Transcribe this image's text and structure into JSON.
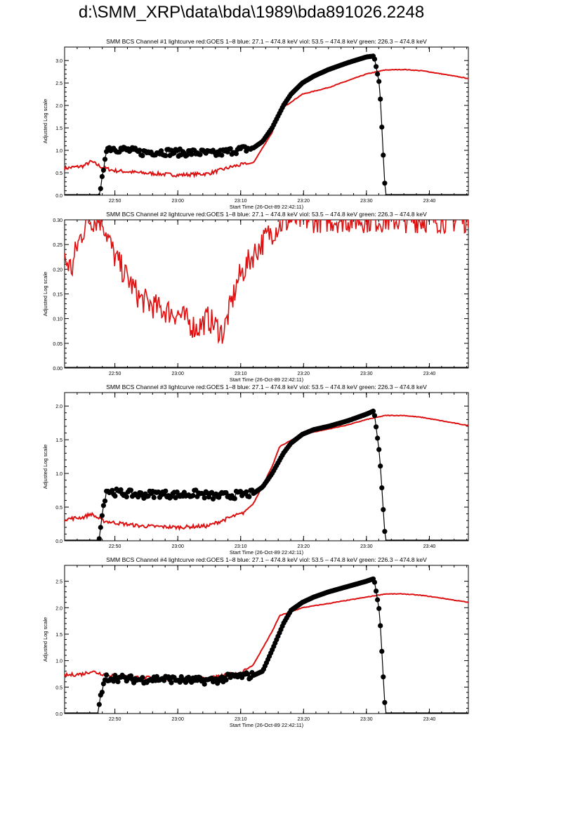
{
  "page": {
    "title": "d:\\SMM_XRP\\data\\bda\\1989\\bda891026.2248"
  },
  "colors": {
    "goes": "#dd1111",
    "bcs": "#000000",
    "axis": "#000000"
  },
  "chart_data": [
    {
      "type": "line",
      "title": "SMM BCS Channel #1 lightcurve  red:GOES 1–8  blue: 27.1 – 474.8 keV  viol: 53.5 – 474.8 keV  green: 226.3 – 474.8 keV",
      "xlabel": "Start Time (26-Oct-89 22:42:11)",
      "ylabel": "Adjusted Log scale",
      "xlim": [
        22.7,
        23.77
      ],
      "ylim": [
        0,
        3.3
      ],
      "xticks": [
        22.8333,
        23.0,
        23.1667,
        23.3333,
        23.5,
        23.6667
      ],
      "xticklabels": [
        "22:50",
        "23:00",
        "23:10",
        "23:20",
        "23:30",
        "23:40"
      ],
      "yticks": [
        0.0,
        0.5,
        1.0,
        1.5,
        2.0,
        2.5,
        3.0
      ],
      "yticklabels": [
        "0.0",
        "0.5",
        "1.0",
        "1.5",
        "2.0",
        "2.5",
        "3.0"
      ],
      "series": [
        {
          "role": "goes",
          "style": "line",
          "x": [
            22.7,
            22.75,
            22.77,
            22.8,
            22.83,
            22.9,
            23.0,
            23.08,
            23.15,
            23.17,
            23.2,
            23.25,
            23.27,
            23.33,
            23.4,
            23.45,
            23.5,
            23.55,
            23.6,
            23.65,
            23.7,
            23.77
          ],
          "y": [
            0.6,
            0.65,
            0.75,
            0.62,
            0.55,
            0.5,
            0.45,
            0.48,
            0.65,
            0.68,
            0.72,
            1.4,
            1.9,
            2.25,
            2.4,
            2.55,
            2.7,
            2.79,
            2.8,
            2.77,
            2.7,
            2.6
          ]
        },
        {
          "role": "bcs",
          "style": "markers",
          "x": [
            22.7,
            22.79,
            22.795,
            22.81,
            22.83,
            22.87,
            22.9,
            22.95,
            23.0,
            23.05,
            23.1,
            23.15,
            23.2,
            23.225,
            23.25,
            23.28,
            23.3,
            23.33,
            23.36,
            23.4,
            23.45,
            23.5,
            23.52,
            23.535,
            23.55,
            23.77
          ],
          "y": [
            0.0,
            0.0,
            0.05,
            1.05,
            1.05,
            1.0,
            0.95,
            0.97,
            0.95,
            0.95,
            0.92,
            1.0,
            1.05,
            1.2,
            1.5,
            2.0,
            2.25,
            2.5,
            2.65,
            2.8,
            2.95,
            3.08,
            3.1,
            2.45,
            0.0,
            0.0
          ]
        }
      ]
    },
    {
      "type": "line",
      "title": "SMM BCS Channel #2 lightcurve  red:GOES 1–8  blue: 27.1 – 474.8 keV  viol: 53.5 – 474.8 keV  green: 226.3 – 474.8 keV",
      "xlabel": "Start Time (26-Oct-89 22:42:11)",
      "ylabel": "Adjusted Log scale",
      "xlim": [
        22.7,
        23.77
      ],
      "ylim": [
        0,
        0.3
      ],
      "xticks": [
        22.8333,
        23.0,
        23.1667,
        23.3333,
        23.5,
        23.6667
      ],
      "xticklabels": [
        "22:50",
        "23:00",
        "23:10",
        "23:20",
        "23:30",
        "23:40"
      ],
      "yticks": [
        0.0,
        0.05,
        0.1,
        0.15,
        0.2,
        0.25,
        0.3
      ],
      "yticklabels": [
        "0.00",
        "0.05",
        "0.10",
        "0.15",
        "0.20",
        "0.25",
        "0.30"
      ],
      "series": [
        {
          "role": "goes",
          "style": "line",
          "x": [
            22.7,
            22.72,
            22.73,
            22.76,
            22.78,
            22.8,
            22.83,
            22.86,
            22.9,
            22.95,
            23.0,
            23.05,
            23.08,
            23.12,
            23.16,
            23.2,
            23.22,
            23.24,
            23.27,
            23.3
          ],
          "y": [
            0.22,
            0.2,
            0.24,
            0.3,
            0.3,
            0.3,
            0.23,
            0.19,
            0.14,
            0.12,
            0.11,
            0.08,
            0.1,
            0.07,
            0.18,
            0.23,
            0.25,
            0.27,
            0.29,
            0.3
          ]
        },
        {
          "role": "bcs",
          "style": "markers",
          "x": [
            22.7,
            23.77
          ],
          "y": [
            0.0,
            0.0
          ]
        }
      ]
    },
    {
      "type": "line",
      "title": "SMM BCS Channel #3 lightcurve  red:GOES 1–8  blue: 27.1 – 474.8 keV  viol: 53.5 – 474.8 keV  green: 226.3 – 474.8 keV",
      "xlabel": "Start Time (26-Oct-89 22:42:11)",
      "ylabel": "Adjusted Log scale",
      "xlim": [
        22.7,
        23.77
      ],
      "ylim": [
        0,
        2.2
      ],
      "xticks": [
        22.8333,
        23.0,
        23.1667,
        23.3333,
        23.5,
        23.6667
      ],
      "xticklabels": [
        "22:50",
        "23:00",
        "23:10",
        "23:20",
        "23:30",
        "23:40"
      ],
      "yticks": [
        0.0,
        0.5,
        1.0,
        1.5,
        2.0
      ],
      "yticklabels": [
        "0.0",
        "0.5",
        "1.0",
        "1.5",
        "2.0"
      ],
      "series": [
        {
          "role": "goes",
          "style": "line",
          "x": [
            22.7,
            22.75,
            22.77,
            22.8,
            22.83,
            22.9,
            23.0,
            23.08,
            23.15,
            23.17,
            23.2,
            23.25,
            23.27,
            23.33,
            23.4,
            23.45,
            23.5,
            23.55,
            23.6,
            23.65,
            23.7,
            23.77
          ],
          "y": [
            0.32,
            0.35,
            0.4,
            0.3,
            0.27,
            0.22,
            0.2,
            0.22,
            0.37,
            0.4,
            0.55,
            1.1,
            1.4,
            1.58,
            1.66,
            1.72,
            1.8,
            1.86,
            1.86,
            1.83,
            1.78,
            1.71
          ]
        },
        {
          "role": "bcs",
          "style": "markers",
          "x": [
            22.7,
            22.79,
            22.795,
            22.81,
            22.83,
            22.87,
            22.9,
            22.95,
            23.0,
            23.05,
            23.1,
            23.15,
            23.2,
            23.225,
            23.25,
            23.28,
            23.3,
            23.33,
            23.36,
            23.4,
            23.45,
            23.5,
            23.52,
            23.535,
            23.55,
            23.77
          ],
          "y": [
            0.0,
            0.0,
            0.23,
            0.75,
            0.72,
            0.7,
            0.68,
            0.7,
            0.68,
            0.7,
            0.66,
            0.68,
            0.7,
            0.8,
            1.0,
            1.3,
            1.45,
            1.58,
            1.65,
            1.7,
            1.78,
            1.88,
            1.93,
            1.27,
            0.0,
            0.0
          ]
        }
      ]
    },
    {
      "type": "line",
      "title": "SMM BCS Channel #4 lightcurve  red:GOES 1–8  blue: 27.1 – 474.8 keV  viol: 53.5 – 474.8 keV  green: 226.3 – 474.8 keV",
      "xlabel": "Start Time (26-Oct-89 22:42:11)",
      "ylabel": "Adjusted Log scale",
      "xlim": [
        22.7,
        23.77
      ],
      "ylim": [
        0,
        2.8
      ],
      "xticks": [
        22.8333,
        23.0,
        23.1667,
        23.3333,
        23.5,
        23.6667
      ],
      "xticklabels": [
        "22:50",
        "23:00",
        "23:10",
        "23:20",
        "23:30",
        "23:40"
      ],
      "yticks": [
        0.0,
        0.5,
        1.0,
        1.5,
        2.0,
        2.5
      ],
      "yticklabels": [
        "0.0",
        "0.5",
        "1.0",
        "1.5",
        "2.0",
        "2.5"
      ],
      "series": [
        {
          "role": "goes",
          "style": "line",
          "x": [
            22.7,
            22.75,
            22.77,
            22.8,
            22.83,
            22.9,
            23.0,
            23.08,
            23.15,
            23.17,
            23.2,
            23.25,
            23.27,
            23.33,
            23.4,
            23.45,
            23.5,
            23.55,
            23.6,
            23.65,
            23.7,
            23.77
          ],
          "y": [
            0.72,
            0.75,
            0.8,
            0.75,
            0.72,
            0.68,
            0.65,
            0.66,
            0.75,
            0.78,
            0.92,
            1.55,
            1.85,
            2.0,
            2.08,
            2.14,
            2.2,
            2.26,
            2.26,
            2.23,
            2.18,
            2.1
          ]
        },
        {
          "role": "bcs",
          "style": "markers",
          "x": [
            22.7,
            22.79,
            22.795,
            22.81,
            22.83,
            22.87,
            22.9,
            22.95,
            23.0,
            23.05,
            23.1,
            23.15,
            23.2,
            23.225,
            23.25,
            23.28,
            23.3,
            23.33,
            23.36,
            23.4,
            23.45,
            23.5,
            23.52,
            23.535,
            23.55,
            23.77
          ],
          "y": [
            0.0,
            0.0,
            0.32,
            0.68,
            0.68,
            0.65,
            0.64,
            0.66,
            0.64,
            0.62,
            0.63,
            0.7,
            0.72,
            0.8,
            1.2,
            1.7,
            1.95,
            2.1,
            2.2,
            2.3,
            2.4,
            2.5,
            2.55,
            1.9,
            0.0,
            0.0
          ]
        }
      ]
    }
  ]
}
